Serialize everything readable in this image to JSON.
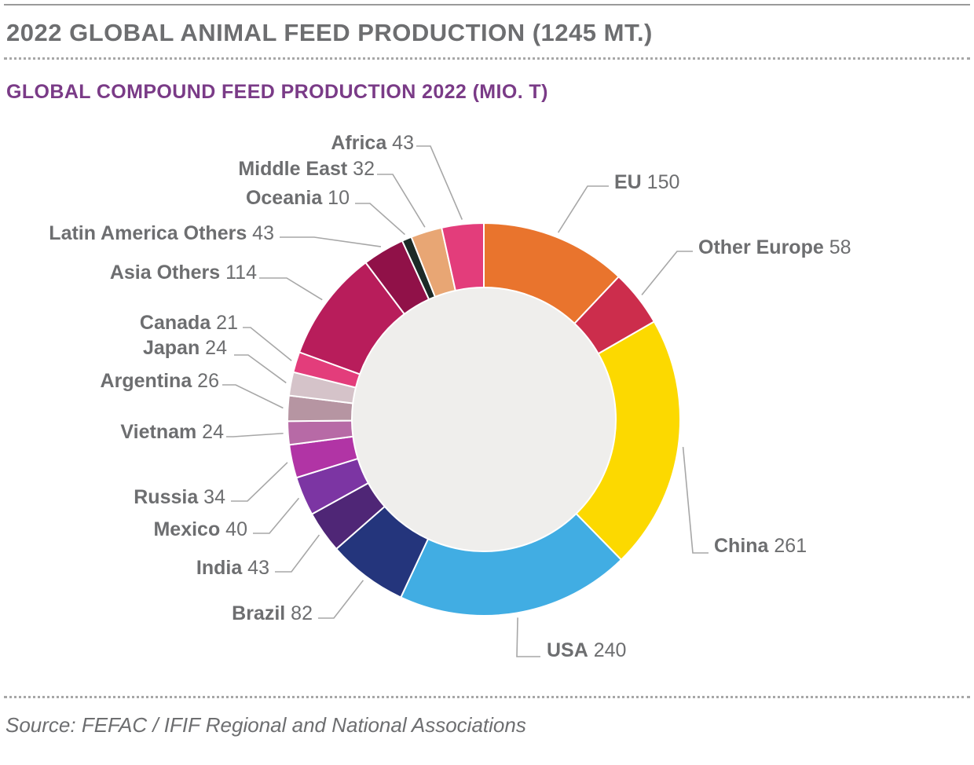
{
  "header": {
    "title": "2022 GLOBAL ANIMAL FEED PRODUCTION (1245 MT.)"
  },
  "chart_data": {
    "type": "pie",
    "variant": "donut",
    "title": "GLOBAL COMPOUND FEED PRODUCTION 2022 (MIO. T)",
    "unit": "Mio. t",
    "start": "top",
    "direction": "clockwise",
    "series": [
      {
        "name": "EU",
        "value": 150,
        "color": "#e9742d"
      },
      {
        "name": "Other Europe",
        "value": 58,
        "color": "#cc2d4c"
      },
      {
        "name": "China",
        "value": 261,
        "color": "#fcd900"
      },
      {
        "name": "USA",
        "value": 240,
        "color": "#41ade3"
      },
      {
        "name": "Brazil",
        "value": 82,
        "color": "#24357c"
      },
      {
        "name": "India",
        "value": 43,
        "color": "#4f2676"
      },
      {
        "name": "Mexico",
        "value": 40,
        "color": "#7c35a3"
      },
      {
        "name": "Russia",
        "value": 34,
        "color": "#b134a5"
      },
      {
        "name": "Vietnam",
        "value": 24,
        "color": "#b76aa6"
      },
      {
        "name": "Argentina",
        "value": 26,
        "color": "#b695a2"
      },
      {
        "name": "Japan",
        "value": 24,
        "color": "#d5c3c9"
      },
      {
        "name": "Canada",
        "value": 21,
        "color": "#e33d7b"
      },
      {
        "name": "Asia Others",
        "value": 114,
        "color": "#b81d5b"
      },
      {
        "name": "Latin America Others",
        "value": 43,
        "color": "#901148"
      },
      {
        "name": "Oceania",
        "value": 10,
        "color": "#1c2a27"
      },
      {
        "name": "Middle East",
        "value": 32,
        "color": "#e8a674"
      },
      {
        "name": "Africa",
        "value": 43,
        "color": "#e33d7b"
      }
    ],
    "center_color": "#efeeec",
    "leader_color": "#a7a7a7"
  },
  "footer": {
    "source": "Source: FEFAC / IFIF Regional and National Associations"
  }
}
